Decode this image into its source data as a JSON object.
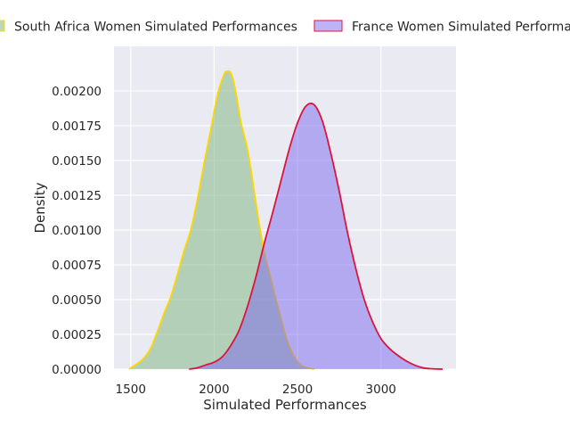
{
  "chart_data": {
    "type": "area",
    "title": "",
    "xlabel": "Simulated Performances",
    "ylabel": "Density",
    "xlim": [
      1400,
      3450
    ],
    "ylim": [
      0,
      0.00232
    ],
    "grid": true,
    "legend_placement": "top, above plot",
    "xticks": [
      1500,
      2000,
      2500,
      3000
    ],
    "xtick_labels": [
      "1500",
      "2000",
      "2500",
      "3000"
    ],
    "yticks": [
      0,
      0.00025,
      0.0005,
      0.00075,
      0.001,
      0.00125,
      0.0015,
      0.00175,
      0.002
    ],
    "ytick_labels": [
      "0.00000",
      "0.00025",
      "0.00050",
      "0.00075",
      "0.00100",
      "0.00125",
      "0.00150",
      "0.00175",
      "0.00200"
    ],
    "series": [
      {
        "name": "South Africa Women Simulated Performances",
        "fill_color": "#8fbc8f",
        "line_color": "#ffd700",
        "x": [
          1490,
          1540,
          1580,
          1620,
          1660,
          1700,
          1740,
          1780,
          1820,
          1860,
          1900,
          1940,
          1980,
          2020,
          2060,
          2080,
          2100,
          2120,
          2140,
          2160,
          2180,
          2200,
          2220,
          2240,
          2260,
          2280,
          2300,
          2330,
          2360,
          2400,
          2440,
          2480,
          2520,
          2560,
          2600
        ],
        "y": [
          0,
          4e-05,
          8e-05,
          0.00015,
          0.00027,
          0.0004,
          0.00052,
          0.00068,
          0.00085,
          0.001,
          0.00122,
          0.00148,
          0.00172,
          0.00197,
          0.00212,
          0.00214,
          0.00213,
          0.00205,
          0.00192,
          0.00178,
          0.00168,
          0.00158,
          0.00144,
          0.00128,
          0.00112,
          0.00098,
          0.00084,
          0.0007,
          0.00055,
          0.00037,
          0.0002,
          9e-05,
          3e-05,
          1e-05,
          0
        ]
      },
      {
        "name": "France Women Simulated Performances",
        "fill_color": "#7b68ee",
        "line_color": "#dc143c",
        "x": [
          1850,
          1900,
          1950,
          2000,
          2050,
          2100,
          2150,
          2200,
          2250,
          2300,
          2350,
          2400,
          2450,
          2500,
          2550,
          2600,
          2650,
          2700,
          2750,
          2800,
          2850,
          2900,
          2950,
          3000,
          3050,
          3100,
          3150,
          3200,
          3250,
          3300,
          3370
        ],
        "y": [
          0,
          1e-05,
          3e-05,
          5e-05,
          9e-05,
          0.00017,
          0.00028,
          0.00045,
          0.00066,
          0.0009,
          0.00112,
          0.00135,
          0.00158,
          0.00177,
          0.00189,
          0.0019,
          0.00178,
          0.00155,
          0.00128,
          0.00098,
          0.00072,
          0.0005,
          0.00034,
          0.00022,
          0.00015,
          0.0001,
          6e-05,
          3e-05,
          1e-05,
          3e-06,
          0
        ]
      }
    ]
  }
}
